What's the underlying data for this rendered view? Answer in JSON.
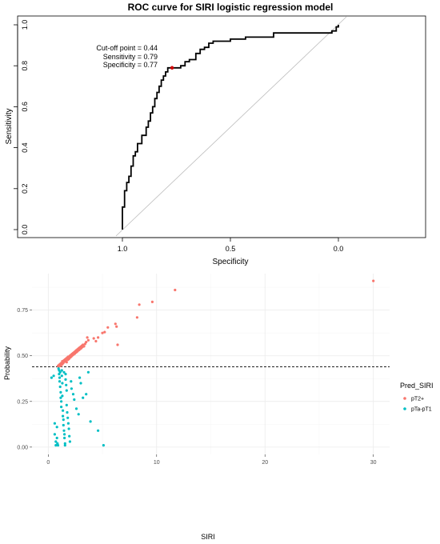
{
  "chart_data": [
    {
      "type": "line",
      "title": "ROC curve for SIRI logistic regression model",
      "xlabel": "Specificity",
      "ylabel": "Sensitivity",
      "xlim": [
        1.0,
        0.0
      ],
      "ylim": [
        0.0,
        1.0
      ],
      "x_ticks": [
        "1.0",
        "0.5",
        "0.0"
      ],
      "y_ticks": [
        "0.0",
        "0.2",
        "0.4",
        "0.6",
        "0.8",
        "1.0"
      ],
      "grid": false,
      "reference_line": {
        "from": [
          1.0,
          0.0
        ],
        "to": [
          0.0,
          1.0
        ]
      },
      "series": [
        {
          "x": [
            1.0,
            1.0,
            0.99,
            0.99,
            0.98,
            0.98,
            0.97,
            0.97,
            0.96,
            0.96,
            0.95,
            0.95,
            0.94,
            0.94,
            0.93,
            0.93,
            0.91,
            0.91,
            0.89,
            0.89,
            0.88,
            0.88,
            0.87,
            0.87,
            0.86,
            0.86,
            0.85,
            0.85,
            0.84,
            0.84,
            0.83,
            0.83,
            0.82,
            0.82,
            0.81,
            0.81,
            0.8,
            0.8,
            0.79,
            0.79,
            0.77,
            0.77,
            0.73,
            0.73,
            0.71,
            0.71,
            0.69,
            0.69,
            0.66,
            0.66,
            0.64,
            0.64,
            0.62,
            0.62,
            0.6,
            0.6,
            0.58,
            0.58,
            0.5,
            0.5,
            0.43,
            0.43,
            0.3,
            0.3,
            0.3,
            0.03,
            0.03,
            0.01,
            0.01,
            0.0,
            0.0
          ],
          "y": [
            0.0,
            0.11,
            0.11,
            0.19,
            0.19,
            0.23,
            0.23,
            0.26,
            0.26,
            0.31,
            0.31,
            0.36,
            0.36,
            0.38,
            0.38,
            0.42,
            0.42,
            0.46,
            0.46,
            0.5,
            0.5,
            0.53,
            0.53,
            0.57,
            0.57,
            0.6,
            0.6,
            0.64,
            0.64,
            0.67,
            0.67,
            0.7,
            0.7,
            0.73,
            0.73,
            0.75,
            0.75,
            0.77,
            0.77,
            0.79,
            0.79,
            0.79,
            0.79,
            0.8,
            0.8,
            0.82,
            0.82,
            0.83,
            0.83,
            0.86,
            0.86,
            0.88,
            0.88,
            0.89,
            0.89,
            0.91,
            0.91,
            0.92,
            0.92,
            0.93,
            0.93,
            0.94,
            0.94,
            0.95,
            0.96,
            0.96,
            0.97,
            0.97,
            0.99,
            0.99,
            1.0
          ]
        }
      ],
      "cutoff_point": {
        "x": 0.77,
        "y": 0.79,
        "color": "#cc0000"
      },
      "annotations": [
        "Cut-off point = 0.44",
        "Sensitivity = 0.79",
        "Specificity = 0.77"
      ],
      "colors": {
        "curve": "#000000",
        "reference": "#bdbdbd"
      }
    },
    {
      "type": "scatter",
      "title": "",
      "xlabel": "SIRI",
      "ylabel": "Probability",
      "xlim": [
        -1.5,
        31.5
      ],
      "ylim": [
        -0.04,
        0.95
      ],
      "x_ticks": [
        "0",
        "10",
        "20",
        "30"
      ],
      "y_ticks": [
        "0.00",
        "0.25",
        "0.50",
        "0.75"
      ],
      "grid": true,
      "legend_position": "right",
      "threshold": 0.44,
      "legend_title": "Pred_SIRI",
      "series": [
        {
          "name": "pT2+",
          "color": "#F8766D",
          "points": [
            [
              0.9,
              0.445
            ],
            [
              0.95,
              0.44
            ],
            [
              1.0,
              0.45
            ],
            [
              1.05,
              0.448
            ],
            [
              1.1,
              0.455
            ],
            [
              1.15,
              0.445
            ],
            [
              1.2,
              0.46
            ],
            [
              1.25,
              0.452
            ],
            [
              1.3,
              0.47
            ],
            [
              1.35,
              0.458
            ],
            [
              1.4,
              0.462
            ],
            [
              1.45,
              0.475
            ],
            [
              1.5,
              0.468
            ],
            [
              1.55,
              0.48
            ],
            [
              1.6,
              0.472
            ],
            [
              1.65,
              0.485
            ],
            [
              1.7,
              0.465
            ],
            [
              1.75,
              0.49
            ],
            [
              1.8,
              0.478
            ],
            [
              1.85,
              0.495
            ],
            [
              1.9,
              0.482
            ],
            [
              1.95,
              0.488
            ],
            [
              2.0,
              0.5
            ],
            [
              2.05,
              0.492
            ],
            [
              2.1,
              0.505
            ],
            [
              2.15,
              0.498
            ],
            [
              2.2,
              0.51
            ],
            [
              2.25,
              0.503
            ],
            [
              2.3,
              0.515
            ],
            [
              2.35,
              0.508
            ],
            [
              2.4,
              0.52
            ],
            [
              2.45,
              0.512
            ],
            [
              2.5,
              0.525
            ],
            [
              2.55,
              0.518
            ],
            [
              2.6,
              0.53
            ],
            [
              2.65,
              0.522
            ],
            [
              2.7,
              0.535
            ],
            [
              2.75,
              0.528
            ],
            [
              2.8,
              0.54
            ],
            [
              2.85,
              0.532
            ],
            [
              2.9,
              0.545
            ],
            [
              2.95,
              0.538
            ],
            [
              3.0,
              0.55
            ],
            [
              3.05,
              0.542
            ],
            [
              3.1,
              0.555
            ],
            [
              3.15,
              0.548
            ],
            [
              3.2,
              0.56
            ],
            [
              3.3,
              0.552
            ],
            [
              3.4,
              0.565
            ],
            [
              3.5,
              0.575
            ],
            [
              3.6,
              0.6
            ],
            [
              3.7,
              0.585
            ],
            [
              4.2,
              0.595
            ],
            [
              4.4,
              0.58
            ],
            [
              4.6,
              0.6
            ],
            [
              5.0,
              0.625
            ],
            [
              5.2,
              0.63
            ],
            [
              5.5,
              0.655
            ],
            [
              6.2,
              0.675
            ],
            [
              6.3,
              0.66
            ],
            [
              6.4,
              0.56
            ],
            [
              8.2,
              0.71
            ],
            [
              8.4,
              0.78
            ],
            [
              9.6,
              0.795
            ],
            [
              11.7,
              0.86
            ],
            [
              30.0,
              0.91
            ]
          ]
        },
        {
          "name": "pTa-pT1",
          "color": "#00BFC4",
          "points": [
            [
              0.3,
              0.38
            ],
            [
              0.5,
              0.39
            ],
            [
              0.6,
              0.13
            ],
            [
              0.6,
              0.07
            ],
            [
              0.7,
              0.03
            ],
            [
              0.7,
              0.01
            ],
            [
              0.8,
              0.11
            ],
            [
              0.8,
              0.05
            ],
            [
              0.85,
              0.02
            ],
            [
              0.9,
              0.01
            ],
            [
              0.95,
              0.43
            ],
            [
              1.0,
              0.42
            ],
            [
              1.0,
              0.4
            ],
            [
              1.05,
              0.38
            ],
            [
              1.05,
              0.36
            ],
            [
              1.1,
              0.41
            ],
            [
              1.1,
              0.33
            ],
            [
              1.15,
              0.3
            ],
            [
              1.15,
              0.27
            ],
            [
              1.2,
              0.25
            ],
            [
              1.2,
              0.22
            ],
            [
              1.25,
              0.42
            ],
            [
              1.25,
              0.39
            ],
            [
              1.3,
              0.35
            ],
            [
              1.3,
              0.28
            ],
            [
              1.35,
              0.2
            ],
            [
              1.35,
              0.17
            ],
            [
              1.4,
              0.15
            ],
            [
              1.4,
              0.12
            ],
            [
              1.45,
              0.41
            ],
            [
              1.45,
              0.09
            ],
            [
              1.5,
              0.07
            ],
            [
              1.5,
              0.05
            ],
            [
              1.55,
              0.02
            ],
            [
              1.55,
              0.01
            ],
            [
              1.6,
              0.4
            ],
            [
              1.6,
              0.37
            ],
            [
              1.65,
              0.34
            ],
            [
              1.7,
              0.31
            ],
            [
              1.7,
              0.23
            ],
            [
              1.75,
              0.19
            ],
            [
              1.8,
              0.16
            ],
            [
              1.85,
              0.13
            ],
            [
              1.9,
              0.1
            ],
            [
              1.95,
              0.06
            ],
            [
              2.0,
              0.03
            ],
            [
              2.1,
              0.36
            ],
            [
              2.15,
              0.32
            ],
            [
              2.3,
              0.29
            ],
            [
              2.4,
              0.26
            ],
            [
              2.6,
              0.21
            ],
            [
              2.8,
              0.18
            ],
            [
              2.9,
              0.38
            ],
            [
              3.0,
              0.35
            ],
            [
              3.2,
              0.27
            ],
            [
              3.5,
              0.29
            ],
            [
              3.7,
              0.41
            ],
            [
              3.9,
              0.14
            ],
            [
              4.6,
              0.09
            ],
            [
              5.1,
              0.01
            ]
          ]
        }
      ]
    }
  ]
}
